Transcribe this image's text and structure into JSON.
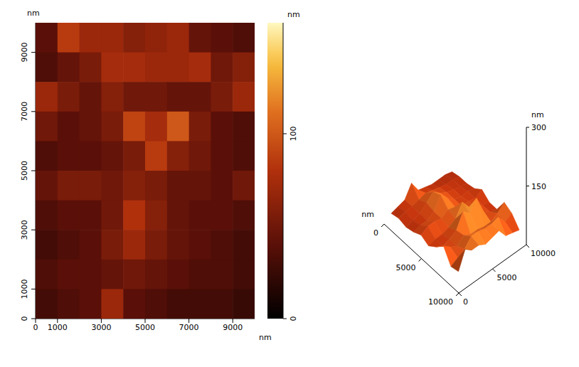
{
  "chart_data": [
    {
      "type": "heatmap",
      "xlabel": "nm",
      "ylabel": "nm",
      "xlim": [
        0,
        10000
      ],
      "ylim": [
        0,
        10000
      ],
      "xticks": [
        0,
        1000,
        3000,
        5000,
        7000,
        9000
      ],
      "yticks": [
        0,
        1000,
        3000,
        5000,
        7000,
        9000
      ],
      "cells": {
        "x": [
          500,
          1500,
          2500,
          3500,
          4500,
          5500,
          6500,
          7500,
          8500,
          9500
        ],
        "y": [
          9500,
          8500,
          7500,
          6500,
          5500,
          4500,
          3500,
          2500,
          1500,
          500
        ],
        "z": [
          [
            40,
            85,
            70,
            70,
            60,
            65,
            70,
            45,
            40,
            35
          ],
          [
            35,
            45,
            55,
            75,
            75,
            70,
            70,
            75,
            50,
            60
          ],
          [
            70,
            55,
            45,
            60,
            50,
            50,
            45,
            45,
            55,
            70
          ],
          [
            50,
            40,
            45,
            55,
            90,
            75,
            100,
            55,
            40,
            35
          ],
          [
            35,
            40,
            40,
            45,
            55,
            85,
            60,
            50,
            40,
            35
          ],
          [
            45,
            55,
            55,
            50,
            60,
            55,
            45,
            45,
            40,
            50
          ],
          [
            35,
            40,
            40,
            50,
            80,
            60,
            45,
            40,
            40,
            35
          ],
          [
            30,
            35,
            40,
            55,
            70,
            55,
            45,
            40,
            35,
            30
          ],
          [
            35,
            40,
            40,
            45,
            50,
            45,
            40,
            35,
            35,
            30
          ],
          [
            30,
            35,
            40,
            70,
            40,
            35,
            30,
            30,
            30,
            25
          ]
        ]
      },
      "colorbar": {
        "label": "nm",
        "range": [
          0,
          160
        ],
        "ticks": [
          0,
          100
        ]
      }
    },
    {
      "type": "surface",
      "ylabel": "nm",
      "zlabel": "nm",
      "xlim": [
        0,
        10000
      ],
      "ylim": [
        0,
        10000
      ],
      "zlim": [
        0,
        300
      ],
      "xticks": [
        0,
        5000,
        10000
      ],
      "yticks": [
        0,
        5000,
        10000
      ],
      "zticks": [
        150,
        300
      ],
      "cells": {
        "x": [
          500,
          1500,
          2500,
          3500,
          4500,
          5500,
          6500,
          7500,
          8500,
          9500
        ],
        "y": [
          9500,
          8500,
          7500,
          6500,
          5500,
          4500,
          3500,
          2500,
          1500,
          500
        ],
        "z": [
          [
            40,
            85,
            70,
            70,
            60,
            65,
            70,
            45,
            40,
            35
          ],
          [
            35,
            45,
            55,
            75,
            75,
            70,
            70,
            75,
            50,
            60
          ],
          [
            70,
            55,
            45,
            60,
            50,
            50,
            45,
            45,
            55,
            70
          ],
          [
            50,
            40,
            45,
            55,
            90,
            75,
            100,
            55,
            40,
            35
          ],
          [
            35,
            40,
            40,
            45,
            55,
            85,
            60,
            50,
            40,
            35
          ],
          [
            45,
            55,
            55,
            50,
            60,
            55,
            45,
            45,
            40,
            50
          ],
          [
            35,
            40,
            40,
            50,
            80,
            60,
            45,
            40,
            40,
            35
          ],
          [
            30,
            35,
            40,
            55,
            70,
            55,
            45,
            40,
            35,
            30
          ],
          [
            35,
            40,
            40,
            45,
            50,
            45,
            40,
            35,
            35,
            30
          ],
          [
            30,
            35,
            40,
            70,
            40,
            35,
            30,
            30,
            30,
            25
          ]
        ]
      }
    }
  ]
}
